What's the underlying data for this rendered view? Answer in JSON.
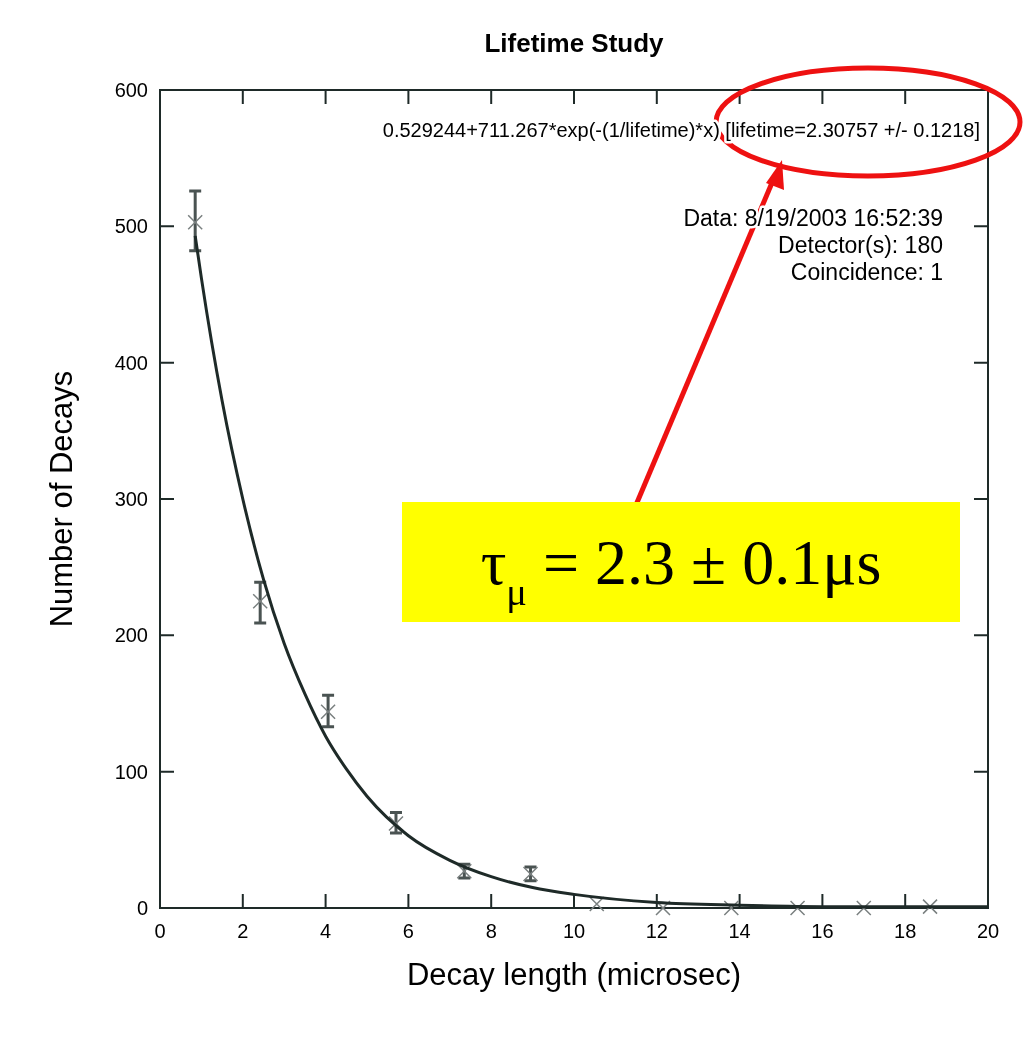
{
  "chart_data": {
    "type": "scatter",
    "title": "Lifetime Study",
    "xlabel": "Decay length (microsec)",
    "ylabel": "Number of Decays",
    "xlim": [
      0,
      20
    ],
    "ylim": [
      0,
      600
    ],
    "xticks": [
      0,
      2,
      4,
      6,
      8,
      10,
      12,
      14,
      16,
      18,
      20
    ],
    "yticks": [
      0,
      100,
      200,
      300,
      400,
      500,
      600
    ],
    "grid": false,
    "series": [
      {
        "type": "scatter",
        "color": "#7a8080",
        "marker": "cross",
        "x": [
          0.85,
          2.42,
          4.06,
          5.7,
          7.35,
          8.95,
          10.55,
          12.15,
          13.8,
          15.4,
          17.0,
          18.6
        ],
        "values": [
          503,
          225,
          144,
          62,
          27,
          25,
          3,
          0,
          0,
          0,
          0,
          1
        ],
        "errors": [
          [
            482,
            526
          ],
          [
            209,
            239
          ],
          [
            133,
            156
          ],
          [
            55,
            70
          ],
          [
            22,
            32
          ],
          [
            20,
            30
          ],
          null,
          null,
          null,
          null,
          null,
          null
        ]
      },
      {
        "type": "line",
        "color": "#1e2a28",
        "marker": "none",
        "line_style": "solid",
        "x": [
          0.85,
          1,
          1.5,
          2,
          2.5,
          3,
          3.5,
          4,
          4.5,
          5,
          6,
          7,
          8,
          9,
          10,
          12,
          14,
          16,
          18,
          20
        ],
        "values": [
          493,
          462,
          372,
          300,
          241,
          194,
          157,
          126,
          102,
          82,
          53,
          35,
          23,
          15,
          10,
          4,
          2,
          1,
          1,
          1
        ]
      }
    ],
    "annotations": [
      "0.529244+711.267*exp(-(1/lifetime)*x) [lifetime=2.30757 +/- 0.1218]",
      "Data: 8/19/2003 16:52:39",
      "Detector(s): 180",
      "Coincidence: 1",
      "τ$_{μ}$ = 2.3 ± 0.1μs"
    ]
  }
}
